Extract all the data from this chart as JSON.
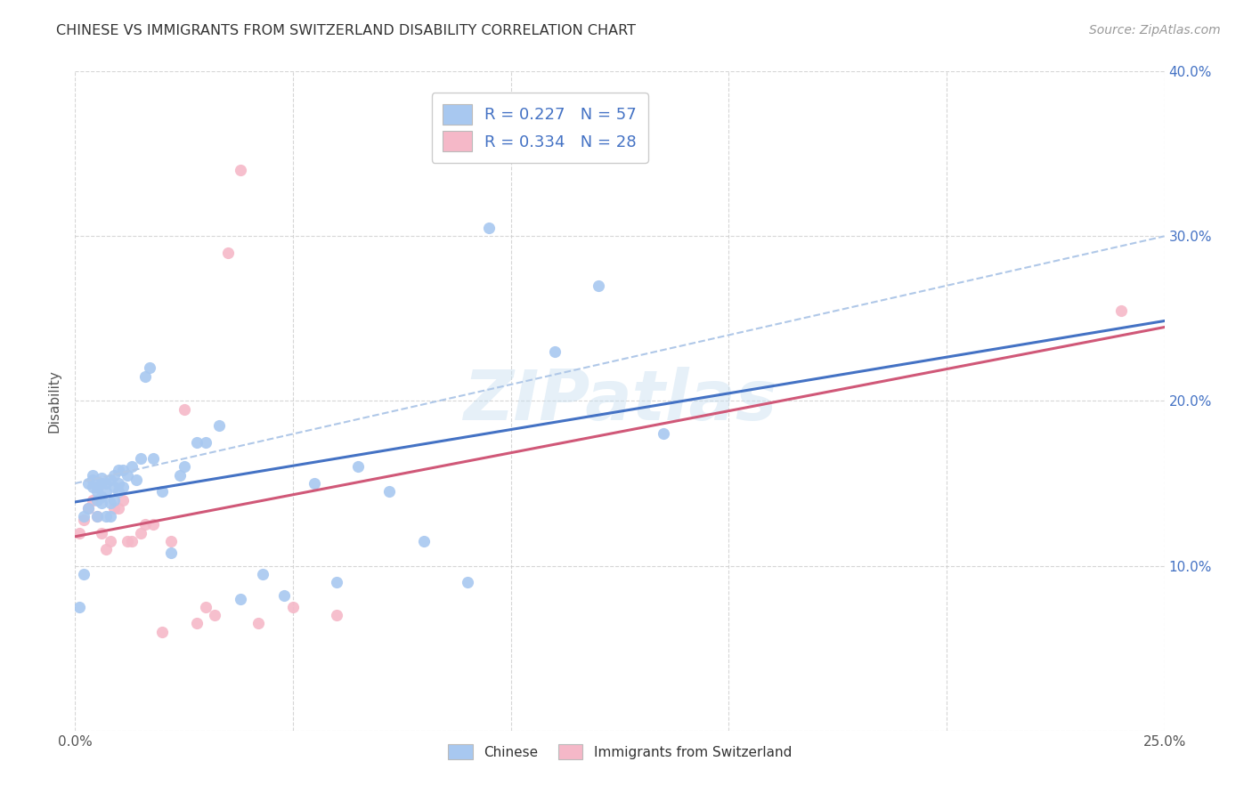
{
  "title": "CHINESE VS IMMIGRANTS FROM SWITZERLAND DISABILITY CORRELATION CHART",
  "source": "Source: ZipAtlas.com",
  "ylabel": "Disability",
  "xlim": [
    0.0,
    0.25
  ],
  "ylim": [
    0.0,
    0.4
  ],
  "xticks": [
    0.0,
    0.05,
    0.1,
    0.15,
    0.2,
    0.25
  ],
  "yticks": [
    0.0,
    0.1,
    0.2,
    0.3,
    0.4
  ],
  "xticklabels": [
    "0.0%",
    "",
    "",
    "",
    "",
    "25.0%"
  ],
  "yticklabels_right": [
    "",
    "10.0%",
    "20.0%",
    "30.0%",
    "40.0%"
  ],
  "watermark": "ZIPatlas",
  "legend_r1": "R = 0.227",
  "legend_n1": "N = 57",
  "legend_r2": "R = 0.334",
  "legend_n2": "N = 28",
  "blue_color": "#a8c8f0",
  "pink_color": "#f5b8c8",
  "line_blue": "#4472c4",
  "line_pink": "#d05878",
  "line_dashed_color": "#b0c8e8",
  "chinese_x": [
    0.001,
    0.002,
    0.002,
    0.003,
    0.003,
    0.004,
    0.004,
    0.004,
    0.005,
    0.005,
    0.005,
    0.005,
    0.006,
    0.006,
    0.006,
    0.006,
    0.007,
    0.007,
    0.007,
    0.008,
    0.008,
    0.008,
    0.009,
    0.009,
    0.009,
    0.01,
    0.01,
    0.01,
    0.011,
    0.011,
    0.012,
    0.013,
    0.014,
    0.015,
    0.016,
    0.017,
    0.018,
    0.02,
    0.022,
    0.024,
    0.025,
    0.028,
    0.03,
    0.033,
    0.038,
    0.043,
    0.048,
    0.055,
    0.06,
    0.065,
    0.072,
    0.08,
    0.09,
    0.095,
    0.11,
    0.12,
    0.135
  ],
  "chinese_y": [
    0.075,
    0.095,
    0.13,
    0.135,
    0.15,
    0.148,
    0.152,
    0.155,
    0.13,
    0.14,
    0.145,
    0.148,
    0.138,
    0.142,
    0.15,
    0.153,
    0.13,
    0.145,
    0.15,
    0.13,
    0.138,
    0.152,
    0.14,
    0.148,
    0.155,
    0.145,
    0.15,
    0.158,
    0.148,
    0.158,
    0.155,
    0.16,
    0.152,
    0.165,
    0.215,
    0.22,
    0.165,
    0.145,
    0.108,
    0.155,
    0.16,
    0.175,
    0.175,
    0.185,
    0.08,
    0.095,
    0.082,
    0.15,
    0.09,
    0.16,
    0.145,
    0.115,
    0.09,
    0.305,
    0.23,
    0.27,
    0.18
  ],
  "swiss_x": [
    0.001,
    0.002,
    0.003,
    0.004,
    0.005,
    0.006,
    0.007,
    0.008,
    0.009,
    0.01,
    0.011,
    0.012,
    0.013,
    0.015,
    0.016,
    0.018,
    0.02,
    0.022,
    0.025,
    0.028,
    0.03,
    0.032,
    0.035,
    0.038,
    0.042,
    0.05,
    0.06,
    0.24
  ],
  "swiss_y": [
    0.12,
    0.128,
    0.135,
    0.14,
    0.13,
    0.12,
    0.11,
    0.115,
    0.135,
    0.135,
    0.14,
    0.115,
    0.115,
    0.12,
    0.125,
    0.125,
    0.06,
    0.115,
    0.195,
    0.065,
    0.075,
    0.07,
    0.29,
    0.34,
    0.065,
    0.075,
    0.07,
    0.255
  ]
}
